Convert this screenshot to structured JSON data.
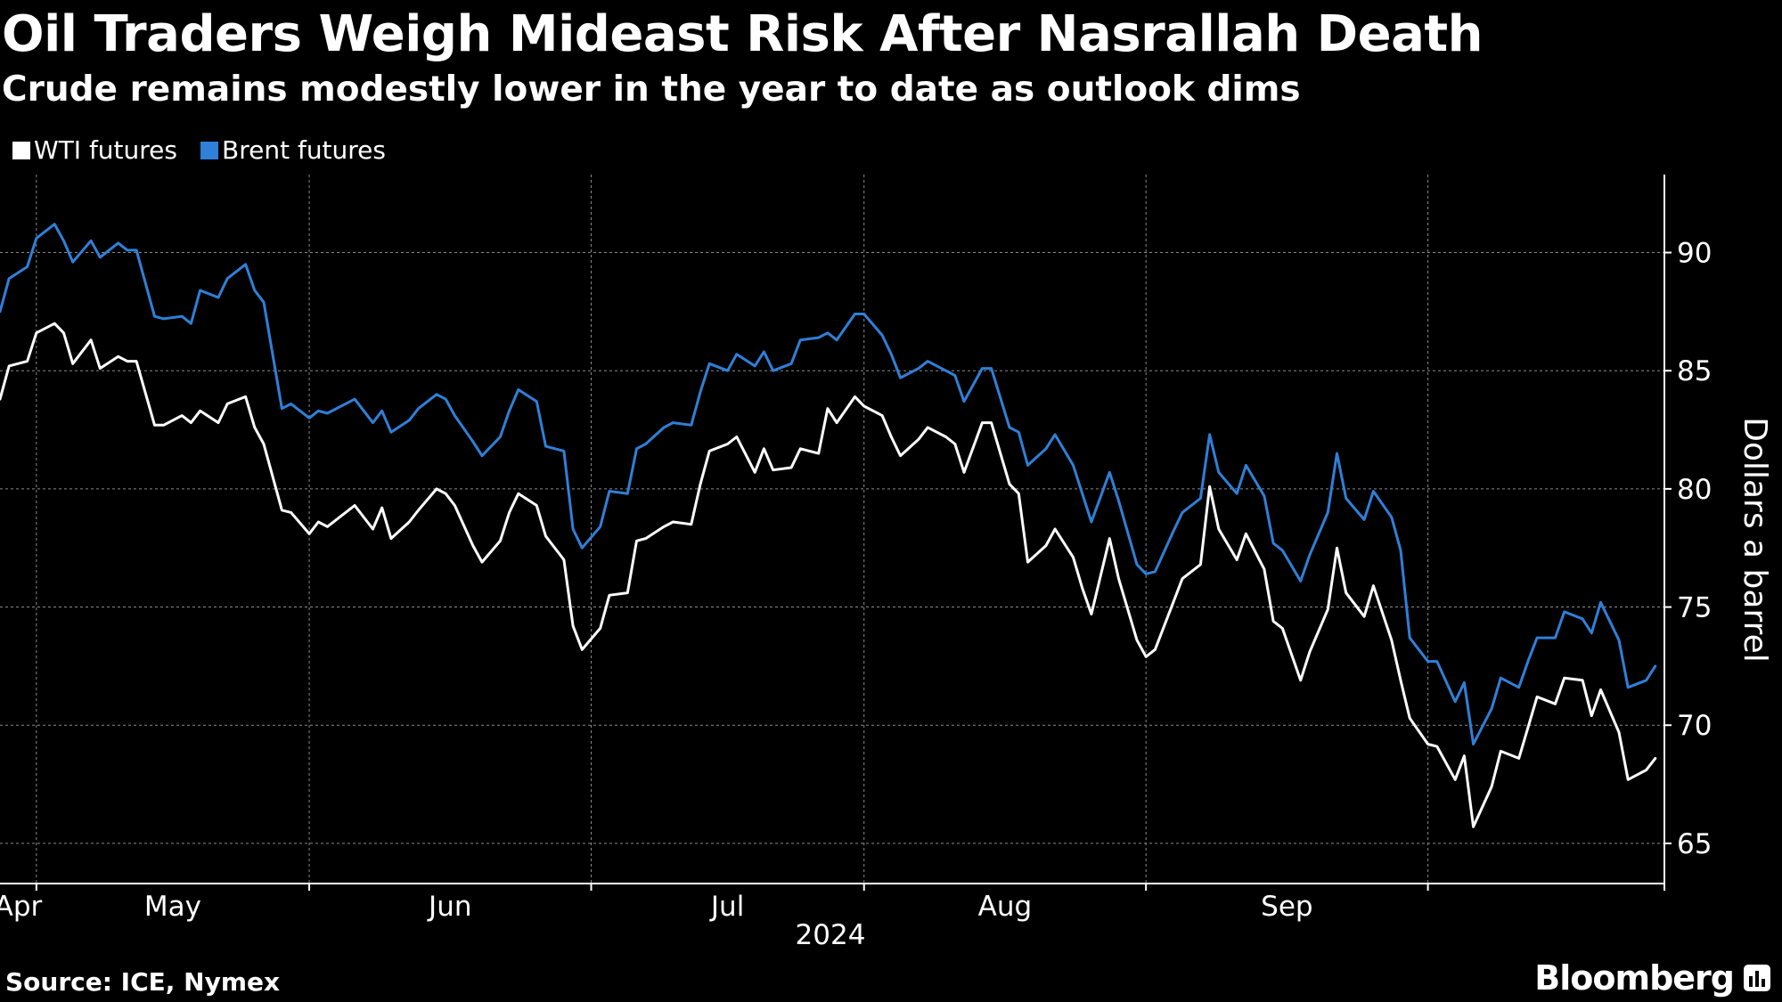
{
  "title": "Oil Traders Weigh Mideast Risk After Nasrallah Death",
  "subtitle": "Crude remains modestly lower in the year to date as outlook dims",
  "source": "Source: ICE, Nymex",
  "brand": "Bloomberg",
  "colors": {
    "background": "#000000",
    "wti": "#ffffff",
    "brent": "#2f80d8",
    "grid": "#8a8a8a",
    "axis": "#ffffff"
  },
  "icons": {
    "brand": "bloomberg-chart-icon"
  },
  "chart_data": {
    "type": "line",
    "title": "",
    "xlabel": "2024",
    "ylabel": "Dollars a barrel",
    "x_tick_labels": [
      "Apr",
      "May",
      "Jun",
      "Jul",
      "Aug",
      "Sep"
    ],
    "y_ticks": [
      65,
      70,
      75,
      80,
      85,
      90
    ],
    "ylim": [
      63.3,
      93.3
    ],
    "xlim": [
      "2024-03-28",
      "2024-09-27"
    ],
    "grid": true,
    "legend": "top-left",
    "y_axis_side": "right",
    "series": [
      {
        "name": "WTI futures",
        "color": "#ffffff",
        "points": [
          [
            "2024-03-28",
            83.8
          ],
          [
            "2024-03-29",
            85.2
          ],
          [
            "2024-03-31",
            85.4
          ],
          [
            "2024-04-01",
            86.6
          ],
          [
            "2024-04-03",
            87.0
          ],
          [
            "2024-04-04",
            86.6
          ],
          [
            "2024-04-05",
            85.3
          ],
          [
            "2024-04-07",
            86.3
          ],
          [
            "2024-04-08",
            85.1
          ],
          [
            "2024-04-10",
            85.6
          ],
          [
            "2024-04-11",
            85.4
          ],
          [
            "2024-04-12",
            85.4
          ],
          [
            "2024-04-14",
            82.7
          ],
          [
            "2024-04-15",
            82.7
          ],
          [
            "2024-04-17",
            83.1
          ],
          [
            "2024-04-18",
            82.8
          ],
          [
            "2024-04-19",
            83.3
          ],
          [
            "2024-04-21",
            82.8
          ],
          [
            "2024-04-22",
            83.6
          ],
          [
            "2024-04-24",
            83.9
          ],
          [
            "2024-04-25",
            82.6
          ],
          [
            "2024-04-26",
            81.9
          ],
          [
            "2024-04-28",
            79.1
          ],
          [
            "2024-04-29",
            79.0
          ],
          [
            "2024-05-01",
            78.1
          ],
          [
            "2024-05-02",
            78.6
          ],
          [
            "2024-05-03",
            78.4
          ],
          [
            "2024-05-05",
            79.0
          ],
          [
            "2024-05-06",
            79.3
          ],
          [
            "2024-05-08",
            78.3
          ],
          [
            "2024-05-09",
            79.2
          ],
          [
            "2024-05-10",
            77.9
          ],
          [
            "2024-05-12",
            78.6
          ],
          [
            "2024-05-13",
            79.1
          ],
          [
            "2024-05-15",
            80.0
          ],
          [
            "2024-05-16",
            79.8
          ],
          [
            "2024-05-17",
            79.3
          ],
          [
            "2024-05-19",
            77.6
          ],
          [
            "2024-05-20",
            76.9
          ],
          [
            "2024-05-22",
            77.8
          ],
          [
            "2024-05-23",
            79.0
          ],
          [
            "2024-05-24",
            79.8
          ],
          [
            "2024-05-26",
            79.3
          ],
          [
            "2024-05-27",
            78.0
          ],
          [
            "2024-05-29",
            77.0
          ],
          [
            "2024-05-30",
            74.2
          ],
          [
            "2024-05-31",
            73.2
          ],
          [
            "2024-06-02",
            74.1
          ],
          [
            "2024-06-03",
            75.5
          ],
          [
            "2024-06-05",
            75.6
          ],
          [
            "2024-06-06",
            77.8
          ],
          [
            "2024-06-07",
            77.9
          ],
          [
            "2024-06-09",
            78.4
          ],
          [
            "2024-06-10",
            78.6
          ],
          [
            "2024-06-12",
            78.5
          ],
          [
            "2024-06-13",
            80.2
          ],
          [
            "2024-06-14",
            81.6
          ],
          [
            "2024-06-16",
            81.9
          ],
          [
            "2024-06-17",
            82.2
          ],
          [
            "2024-06-19",
            80.7
          ],
          [
            "2024-06-20",
            81.7
          ],
          [
            "2024-06-21",
            80.8
          ],
          [
            "2024-06-23",
            80.9
          ],
          [
            "2024-06-24",
            81.7
          ],
          [
            "2024-06-26",
            81.5
          ],
          [
            "2024-06-27",
            83.4
          ],
          [
            "2024-06-28",
            82.8
          ],
          [
            "2024-06-30",
            83.9
          ],
          [
            "2024-07-01",
            83.5
          ],
          [
            "2024-07-03",
            83.1
          ],
          [
            "2024-07-04",
            82.2
          ],
          [
            "2024-07-05",
            81.4
          ],
          [
            "2024-07-07",
            82.1
          ],
          [
            "2024-07-08",
            82.6
          ],
          [
            "2024-07-10",
            82.2
          ],
          [
            "2024-07-11",
            81.9
          ],
          [
            "2024-07-12",
            80.7
          ],
          [
            "2024-07-14",
            82.8
          ],
          [
            "2024-07-15",
            82.8
          ],
          [
            "2024-07-17",
            80.2
          ],
          [
            "2024-07-18",
            79.8
          ],
          [
            "2024-07-19",
            76.9
          ],
          [
            "2024-07-21",
            77.6
          ],
          [
            "2024-07-22",
            78.3
          ],
          [
            "2024-07-24",
            77.1
          ],
          [
            "2024-07-25",
            75.8
          ],
          [
            "2024-07-26",
            74.7
          ],
          [
            "2024-07-28",
            77.9
          ],
          [
            "2024-07-29",
            76.2
          ],
          [
            "2024-07-31",
            73.6
          ],
          [
            "2024-08-01",
            72.9
          ],
          [
            "2024-08-02",
            73.2
          ],
          [
            "2024-08-04",
            75.2
          ],
          [
            "2024-08-05",
            76.2
          ],
          [
            "2024-08-07",
            76.8
          ],
          [
            "2024-08-08",
            80.1
          ],
          [
            "2024-08-09",
            78.3
          ],
          [
            "2024-08-11",
            77.0
          ],
          [
            "2024-08-12",
            78.1
          ],
          [
            "2024-08-14",
            76.6
          ],
          [
            "2024-08-15",
            74.4
          ],
          [
            "2024-08-16",
            74.1
          ],
          [
            "2024-08-18",
            71.9
          ],
          [
            "2024-08-19",
            73.1
          ],
          [
            "2024-08-21",
            74.9
          ],
          [
            "2024-08-22",
            77.5
          ],
          [
            "2024-08-23",
            75.6
          ],
          [
            "2024-08-25",
            74.6
          ],
          [
            "2024-08-26",
            75.9
          ],
          [
            "2024-08-28",
            73.6
          ],
          [
            "2024-08-29",
            71.9
          ],
          [
            "2024-08-30",
            70.3
          ],
          [
            "2024-09-01",
            69.2
          ],
          [
            "2024-09-02",
            69.1
          ],
          [
            "2024-09-04",
            67.7
          ],
          [
            "2024-09-05",
            68.7
          ],
          [
            "2024-09-06",
            65.7
          ],
          [
            "2024-09-08",
            67.4
          ],
          [
            "2024-09-09",
            68.9
          ],
          [
            "2024-09-11",
            68.6
          ],
          [
            "2024-09-12",
            69.9
          ],
          [
            "2024-09-13",
            71.2
          ],
          [
            "2024-09-15",
            70.9
          ],
          [
            "2024-09-16",
            72.0
          ],
          [
            "2024-09-18",
            71.9
          ],
          [
            "2024-09-19",
            70.4
          ],
          [
            "2024-09-20",
            71.5
          ],
          [
            "2024-09-22",
            69.7
          ],
          [
            "2024-09-23",
            67.7
          ],
          [
            "2024-09-25",
            68.1
          ],
          [
            "2024-09-26",
            68.6
          ]
        ]
      },
      {
        "name": "Brent futures",
        "color": "#2f80d8",
        "points": [
          [
            "2024-03-28",
            87.5
          ],
          [
            "2024-03-29",
            88.9
          ],
          [
            "2024-03-31",
            89.4
          ],
          [
            "2024-04-01",
            90.6
          ],
          [
            "2024-04-03",
            91.2
          ],
          [
            "2024-04-04",
            90.5
          ],
          [
            "2024-04-05",
            89.6
          ],
          [
            "2024-04-07",
            90.5
          ],
          [
            "2024-04-08",
            89.8
          ],
          [
            "2024-04-10",
            90.4
          ],
          [
            "2024-04-11",
            90.1
          ],
          [
            "2024-04-12",
            90.1
          ],
          [
            "2024-04-14",
            87.3
          ],
          [
            "2024-04-15",
            87.2
          ],
          [
            "2024-04-17",
            87.3
          ],
          [
            "2024-04-18",
            87.0
          ],
          [
            "2024-04-19",
            88.4
          ],
          [
            "2024-04-21",
            88.1
          ],
          [
            "2024-04-22",
            88.9
          ],
          [
            "2024-04-24",
            89.5
          ],
          [
            "2024-04-25",
            88.4
          ],
          [
            "2024-04-26",
            87.9
          ],
          [
            "2024-04-28",
            83.4
          ],
          [
            "2024-04-29",
            83.6
          ],
          [
            "2024-05-01",
            83.0
          ],
          [
            "2024-05-02",
            83.3
          ],
          [
            "2024-05-03",
            83.2
          ],
          [
            "2024-05-05",
            83.6
          ],
          [
            "2024-05-06",
            83.8
          ],
          [
            "2024-05-08",
            82.8
          ],
          [
            "2024-05-09",
            83.3
          ],
          [
            "2024-05-10",
            82.4
          ],
          [
            "2024-05-12",
            82.9
          ],
          [
            "2024-05-13",
            83.4
          ],
          [
            "2024-05-15",
            84.0
          ],
          [
            "2024-05-16",
            83.8
          ],
          [
            "2024-05-17",
            83.1
          ],
          [
            "2024-05-19",
            82.0
          ],
          [
            "2024-05-20",
            81.4
          ],
          [
            "2024-05-22",
            82.2
          ],
          [
            "2024-05-23",
            83.3
          ],
          [
            "2024-05-24",
            84.2
          ],
          [
            "2024-05-26",
            83.7
          ],
          [
            "2024-05-27",
            81.8
          ],
          [
            "2024-05-29",
            81.6
          ],
          [
            "2024-05-30",
            78.3
          ],
          [
            "2024-05-31",
            77.5
          ],
          [
            "2024-06-02",
            78.4
          ],
          [
            "2024-06-03",
            79.9
          ],
          [
            "2024-06-05",
            79.8
          ],
          [
            "2024-06-06",
            81.7
          ],
          [
            "2024-06-07",
            81.9
          ],
          [
            "2024-06-09",
            82.6
          ],
          [
            "2024-06-10",
            82.8
          ],
          [
            "2024-06-12",
            82.7
          ],
          [
            "2024-06-13",
            84.1
          ],
          [
            "2024-06-14",
            85.3
          ],
          [
            "2024-06-16",
            85.0
          ],
          [
            "2024-06-17",
            85.7
          ],
          [
            "2024-06-19",
            85.2
          ],
          [
            "2024-06-20",
            85.8
          ],
          [
            "2024-06-21",
            85.0
          ],
          [
            "2024-06-23",
            85.3
          ],
          [
            "2024-06-24",
            86.3
          ],
          [
            "2024-06-26",
            86.4
          ],
          [
            "2024-06-27",
            86.6
          ],
          [
            "2024-06-28",
            86.3
          ],
          [
            "2024-06-30",
            87.4
          ],
          [
            "2024-07-01",
            87.4
          ],
          [
            "2024-07-03",
            86.5
          ],
          [
            "2024-07-04",
            85.7
          ],
          [
            "2024-07-05",
            84.7
          ],
          [
            "2024-07-07",
            85.1
          ],
          [
            "2024-07-08",
            85.4
          ],
          [
            "2024-07-10",
            85.0
          ],
          [
            "2024-07-11",
            84.8
          ],
          [
            "2024-07-12",
            83.7
          ],
          [
            "2024-07-14",
            85.1
          ],
          [
            "2024-07-15",
            85.1
          ],
          [
            "2024-07-17",
            82.6
          ],
          [
            "2024-07-18",
            82.4
          ],
          [
            "2024-07-19",
            81.0
          ],
          [
            "2024-07-21",
            81.7
          ],
          [
            "2024-07-22",
            82.3
          ],
          [
            "2024-07-24",
            81.0
          ],
          [
            "2024-07-25",
            79.8
          ],
          [
            "2024-07-26",
            78.6
          ],
          [
            "2024-07-28",
            80.7
          ],
          [
            "2024-07-29",
            79.5
          ],
          [
            "2024-07-31",
            76.8
          ],
          [
            "2024-08-01",
            76.4
          ],
          [
            "2024-08-02",
            76.5
          ],
          [
            "2024-08-04",
            78.2
          ],
          [
            "2024-08-05",
            79.0
          ],
          [
            "2024-08-07",
            79.6
          ],
          [
            "2024-08-08",
            82.3
          ],
          [
            "2024-08-09",
            80.7
          ],
          [
            "2024-08-11",
            79.8
          ],
          [
            "2024-08-12",
            81.0
          ],
          [
            "2024-08-14",
            79.7
          ],
          [
            "2024-08-15",
            77.7
          ],
          [
            "2024-08-16",
            77.4
          ],
          [
            "2024-08-18",
            76.1
          ],
          [
            "2024-08-19",
            77.2
          ],
          [
            "2024-08-21",
            79.0
          ],
          [
            "2024-08-22",
            81.5
          ],
          [
            "2024-08-23",
            79.6
          ],
          [
            "2024-08-25",
            78.7
          ],
          [
            "2024-08-26",
            79.9
          ],
          [
            "2024-08-28",
            78.8
          ],
          [
            "2024-08-29",
            77.4
          ],
          [
            "2024-08-30",
            73.7
          ],
          [
            "2024-09-01",
            72.7
          ],
          [
            "2024-09-02",
            72.7
          ],
          [
            "2024-09-04",
            71.0
          ],
          [
            "2024-09-05",
            71.8
          ],
          [
            "2024-09-06",
            69.2
          ],
          [
            "2024-09-08",
            70.7
          ],
          [
            "2024-09-09",
            72.0
          ],
          [
            "2024-09-11",
            71.6
          ],
          [
            "2024-09-12",
            72.7
          ],
          [
            "2024-09-13",
            73.7
          ],
          [
            "2024-09-15",
            73.7
          ],
          [
            "2024-09-16",
            74.8
          ],
          [
            "2024-09-18",
            74.5
          ],
          [
            "2024-09-19",
            73.9
          ],
          [
            "2024-09-20",
            75.2
          ],
          [
            "2024-09-22",
            73.6
          ],
          [
            "2024-09-23",
            71.6
          ],
          [
            "2024-09-25",
            71.9
          ],
          [
            "2024-09-26",
            72.5
          ]
        ]
      }
    ]
  }
}
